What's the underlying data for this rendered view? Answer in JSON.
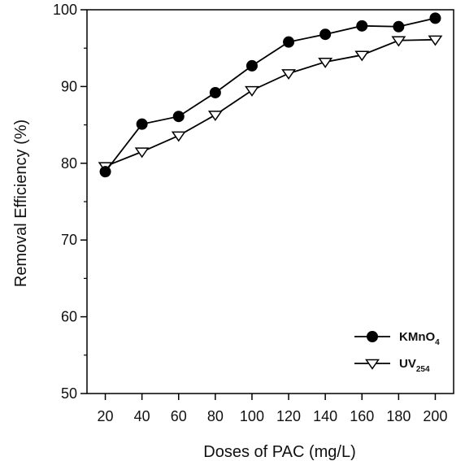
{
  "chart_data": {
    "type": "line",
    "xlabel": "Doses of PAC (mg/L)",
    "ylabel": "Removal Efficiency (%)",
    "x": [
      20,
      40,
      60,
      80,
      100,
      120,
      140,
      160,
      180,
      200
    ],
    "xtick_labels": [
      "20",
      "40",
      "60",
      "80",
      "100",
      "120",
      "140",
      "160",
      "180",
      "200"
    ],
    "ylim": [
      50,
      100
    ],
    "yticks": [
      50,
      60,
      70,
      80,
      90,
      100
    ],
    "ytick_labels": [
      "50",
      "60",
      "70",
      "80",
      "90",
      "100"
    ],
    "grid": false,
    "legend_position": "bottom-right",
    "series": [
      {
        "name": "KMnO4",
        "label_main": "KMnO",
        "label_sub": "4",
        "marker": "filled-circle",
        "color": "#000000",
        "values": [
          78.9,
          85.1,
          86.1,
          89.2,
          92.7,
          95.8,
          96.8,
          97.9,
          97.8,
          98.9
        ]
      },
      {
        "name": "UV254",
        "label_main": "UV",
        "label_sub": "254",
        "marker": "open-triangle-down",
        "color": "#000000",
        "values": [
          79.6,
          81.5,
          83.6,
          86.3,
          89.5,
          91.7,
          93.2,
          94.1,
          96.0,
          96.1
        ]
      }
    ]
  }
}
